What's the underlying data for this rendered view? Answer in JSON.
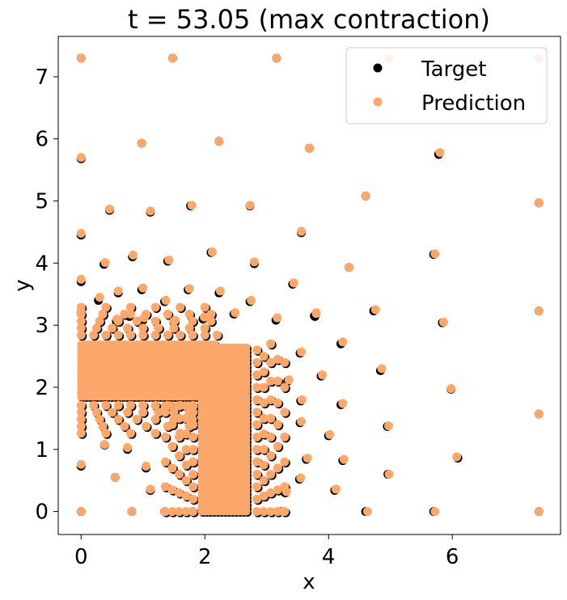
{
  "chart_data": {
    "type": "scatter",
    "title": "t = 53.05 (max contraction)",
    "xlabel": "x",
    "ylabel": "y",
    "xlim": [
      -0.37,
      7.75
    ],
    "ylim": [
      -0.37,
      7.65
    ],
    "xticks": [
      0,
      2,
      4,
      6
    ],
    "yticks": [
      0,
      1,
      2,
      3,
      4,
      5,
      6,
      7
    ],
    "grid": false,
    "legend_position": "top-right",
    "colors": {
      "target": "#000000",
      "prediction": "#FCA86B"
    },
    "series": [
      {
        "name": "Target",
        "points": [
          [
            0,
            7.3
          ],
          [
            1.48,
            7.3
          ],
          [
            3.16,
            7.3
          ],
          [
            4.98,
            7.3
          ],
          [
            7.4,
            7.3
          ],
          [
            0,
            5.68
          ],
          [
            0.98,
            5.93
          ],
          [
            2.23,
            5.96
          ],
          [
            3.69,
            5.85
          ],
          [
            5.78,
            5.75
          ],
          [
            0.46,
            4.85
          ],
          [
            1.12,
            4.82
          ],
          [
            1.77,
            4.92
          ],
          [
            2.73,
            4.92
          ],
          [
            4.6,
            5.08
          ],
          [
            7.4,
            4.97
          ],
          [
            0,
            4.45
          ],
          [
            0.83,
            4.1
          ],
          [
            1.4,
            4.03
          ],
          [
            2.1,
            4.17
          ],
          [
            2.8,
            3.99
          ],
          [
            3.56,
            4.49
          ],
          [
            4.33,
            3.93
          ],
          [
            5.7,
            4.14
          ],
          [
            0,
            3.7
          ],
          [
            0.37,
            3.98
          ],
          [
            0.6,
            3.52
          ],
          [
            0.98,
            3.57
          ],
          [
            1.73,
            3.57
          ],
          [
            2.23,
            3.52
          ],
          [
            2.73,
            3.38
          ],
          [
            3.42,
            3.66
          ],
          [
            0,
            3.2
          ],
          [
            0.28,
            3.4
          ],
          [
            0.57,
            3.06
          ],
          [
            0.78,
            3.14
          ],
          [
            1.0,
            3.08
          ],
          [
            1.35,
            3.38
          ],
          [
            1.5,
            3.05
          ],
          [
            1.97,
            3.1
          ],
          [
            2.47,
            3.18
          ],
          [
            3.15,
            3.08
          ],
          [
            3.78,
            3.14
          ],
          [
            4.73,
            3.23
          ],
          [
            5.84,
            3.04
          ],
          [
            7.4,
            3.23
          ],
          [
            0,
            0
          ],
          [
            0.82,
            0
          ],
          [
            1.35,
            0
          ],
          [
            1.8,
            0
          ],
          [
            3.24,
            0
          ],
          [
            4.6,
            0
          ],
          [
            5.7,
            0
          ],
          [
            7.4,
            0
          ],
          [
            0,
            0.73
          ],
          [
            0.38,
            1.07
          ],
          [
            0.75,
            1.0
          ],
          [
            1.05,
            0.7
          ],
          [
            1.12,
            0.34
          ],
          [
            0.55,
            0.55
          ],
          [
            4.96,
            0.6
          ],
          [
            6.09,
            0.86
          ],
          [
            4.95,
            1.37
          ],
          [
            4.2,
            1.72
          ],
          [
            4.0,
            1.22
          ],
          [
            4.84,
            2.27
          ],
          [
            5.98,
            1.97
          ],
          [
            4.2,
            2.7
          ],
          [
            3.77,
            3.15
          ],
          [
            3.88,
            2.18
          ],
          [
            3.54,
            2.55
          ],
          [
            3.34,
            2.1
          ],
          [
            3.55,
            1.78
          ],
          [
            3.54,
            1.43
          ],
          [
            3.64,
            0.84
          ],
          [
            3.53,
            0.52
          ],
          [
            4.23,
            0.82
          ],
          [
            4.1,
            0.34
          ],
          [
            3.3,
            0.3
          ],
          [
            7.4,
            1.57
          ]
        ]
      },
      {
        "name": "Prediction",
        "points": [
          [
            0,
            7.3
          ],
          [
            1.48,
            7.3
          ],
          [
            3.16,
            7.3
          ],
          [
            4.98,
            7.3
          ],
          [
            7.4,
            7.3
          ],
          [
            0,
            5.7
          ],
          [
            0.98,
            5.93
          ],
          [
            2.23,
            5.96
          ],
          [
            3.69,
            5.85
          ],
          [
            5.8,
            5.78
          ],
          [
            0.46,
            4.87
          ],
          [
            1.12,
            4.84
          ],
          [
            1.79,
            4.93
          ],
          [
            2.73,
            4.93
          ],
          [
            4.6,
            5.08
          ],
          [
            7.4,
            4.97
          ],
          [
            0,
            4.48
          ],
          [
            0.84,
            4.13
          ],
          [
            1.42,
            4.05
          ],
          [
            2.12,
            4.18
          ],
          [
            2.8,
            4.02
          ],
          [
            3.56,
            4.51
          ],
          [
            4.33,
            3.93
          ],
          [
            5.72,
            4.15
          ],
          [
            0,
            3.74
          ],
          [
            0.39,
            4.01
          ],
          [
            0.6,
            3.55
          ],
          [
            1.0,
            3.6
          ],
          [
            1.75,
            3.59
          ],
          [
            2.25,
            3.55
          ],
          [
            2.75,
            3.4
          ],
          [
            3.44,
            3.68
          ],
          [
            0,
            3.23
          ],
          [
            0.3,
            3.45
          ],
          [
            0.58,
            3.1
          ],
          [
            0.8,
            3.18
          ],
          [
            1.02,
            3.12
          ],
          [
            1.37,
            3.4
          ],
          [
            1.52,
            3.08
          ],
          [
            1.99,
            3.13
          ],
          [
            2.49,
            3.2
          ],
          [
            3.17,
            3.12
          ],
          [
            3.8,
            3.2
          ],
          [
            4.76,
            3.25
          ],
          [
            5.86,
            3.05
          ],
          [
            7.4,
            3.23
          ],
          [
            0,
            0
          ],
          [
            0.82,
            0
          ],
          [
            1.35,
            0
          ],
          [
            1.8,
            0
          ],
          [
            3.26,
            0
          ],
          [
            4.63,
            0
          ],
          [
            5.72,
            0
          ],
          [
            7.4,
            0
          ],
          [
            0,
            0.76
          ],
          [
            0.38,
            1.08
          ],
          [
            0.75,
            1.03
          ],
          [
            1.05,
            0.73
          ],
          [
            1.12,
            0.36
          ],
          [
            0.55,
            0.55
          ],
          [
            4.98,
            0.6
          ],
          [
            6.07,
            0.88
          ],
          [
            4.97,
            1.38
          ],
          [
            4.23,
            1.74
          ],
          [
            4.02,
            1.24
          ],
          [
            4.86,
            2.3
          ],
          [
            5.98,
            1.98
          ],
          [
            4.23,
            2.73
          ],
          [
            3.8,
            3.19
          ],
          [
            3.9,
            2.2
          ],
          [
            3.56,
            2.57
          ],
          [
            3.36,
            2.12
          ],
          [
            3.57,
            1.8
          ],
          [
            3.56,
            1.45
          ],
          [
            3.66,
            0.86
          ],
          [
            3.55,
            0.54
          ],
          [
            4.25,
            0.84
          ],
          [
            4.12,
            0.36
          ],
          [
            3.32,
            0.32
          ],
          [
            7.4,
            1.57
          ]
        ]
      }
    ]
  }
}
